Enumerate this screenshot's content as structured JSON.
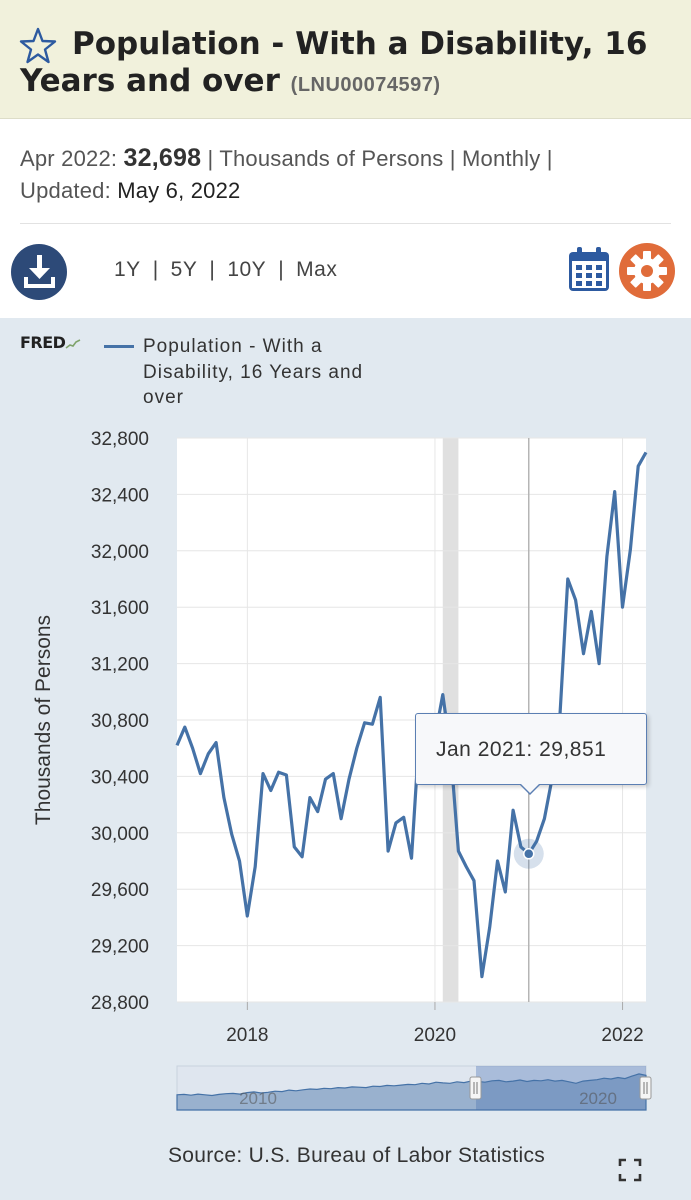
{
  "header": {
    "title": "Population - With a Disability, 16 Years and over",
    "series_id": "(LNU00074597)"
  },
  "meta": {
    "latest_date": "Apr 2022:",
    "latest_value": "32,698",
    "units": "Thousands of Persons",
    "frequency": "Monthly",
    "updated_label": "Updated:",
    "updated_date": "May 6, 2022"
  },
  "toolbar": {
    "ranges": [
      "1Y",
      "5Y",
      "10Y",
      "Max"
    ]
  },
  "branding": {
    "logo_text": "FRED"
  },
  "icons": {
    "favorite": "star-icon",
    "download": "download-icon",
    "calendar": "calendar-icon",
    "settings": "gear-icon",
    "fullscreen": "fullscreen-icon"
  },
  "colors": {
    "series": "#4572a7",
    "title_bg": "#f1f1dc",
    "panel_bg": "#e1e9f0",
    "download_btn": "#2d4a78",
    "settings_btn": "#e06c3a",
    "recession_band": "#e0e0e0"
  },
  "tooltip": {
    "label": "Jan 2021:",
    "value": "29,851"
  },
  "source": "Source: U.S. Bureau of Labor Statistics",
  "chart_data": {
    "type": "line",
    "title": "",
    "legend": [
      "Population - With a Disability, 16 Years and over"
    ],
    "legend_position": "top-left",
    "ylabel": "Thousands of Persons",
    "xlabel": "",
    "ylim": [
      28800,
      32800
    ],
    "y_ticks": [
      28800,
      29200,
      29600,
      30000,
      30400,
      30800,
      31200,
      31600,
      32000,
      32400,
      32800
    ],
    "y_tick_labels": [
      "28,800",
      "29,200",
      "29,600",
      "30,000",
      "30,400",
      "30,800",
      "31,200",
      "31,600",
      "32,000",
      "32,400",
      "32,800"
    ],
    "x_ticks": [
      "2018-01",
      "2020-01",
      "2022-01"
    ],
    "x_tick_labels": [
      "2018",
      "2020",
      "2022"
    ],
    "xlim": [
      "2017-04",
      "2022-04"
    ],
    "grid": true,
    "recession": {
      "start": "2020-02",
      "end": "2020-04"
    },
    "highlight": {
      "date": "2021-01",
      "value": 29851
    },
    "series": [
      {
        "name": "Population - With a Disability, 16 Years and over",
        "points": [
          [
            "2017-04",
            30620
          ],
          [
            "2017-05",
            30750
          ],
          [
            "2017-06",
            30600
          ],
          [
            "2017-07",
            30420
          ],
          [
            "2017-08",
            30560
          ],
          [
            "2017-09",
            30640
          ],
          [
            "2017-10",
            30250
          ],
          [
            "2017-11",
            29990
          ],
          [
            "2017-12",
            29800
          ],
          [
            "2018-01",
            29410
          ],
          [
            "2018-02",
            29760
          ],
          [
            "2018-03",
            30420
          ],
          [
            "2018-04",
            30300
          ],
          [
            "2018-05",
            30430
          ],
          [
            "2018-06",
            30410
          ],
          [
            "2018-07",
            29900
          ],
          [
            "2018-08",
            29830
          ],
          [
            "2018-09",
            30250
          ],
          [
            "2018-10",
            30150
          ],
          [
            "2018-11",
            30380
          ],
          [
            "2018-12",
            30420
          ],
          [
            "2019-01",
            30100
          ],
          [
            "2019-02",
            30380
          ],
          [
            "2019-03",
            30600
          ],
          [
            "2019-04",
            30780
          ],
          [
            "2019-05",
            30770
          ],
          [
            "2019-06",
            30960
          ],
          [
            "2019-07",
            29870
          ],
          [
            "2019-08",
            30070
          ],
          [
            "2019-09",
            30110
          ],
          [
            "2019-10",
            29820
          ],
          [
            "2019-11",
            30700
          ],
          [
            "2019-12",
            30730
          ],
          [
            "2020-01",
            30680
          ],
          [
            "2020-02",
            30980
          ],
          [
            "2020-03",
            30580
          ],
          [
            "2020-04",
            29870
          ],
          [
            "2020-05",
            29760
          ],
          [
            "2020-06",
            29660
          ],
          [
            "2020-07",
            28980
          ],
          [
            "2020-08",
            29330
          ],
          [
            "2020-09",
            29800
          ],
          [
            "2020-10",
            29580
          ],
          [
            "2020-11",
            30160
          ],
          [
            "2020-12",
            29900
          ],
          [
            "2021-01",
            29851
          ],
          [
            "2021-02",
            29940
          ],
          [
            "2021-03",
            30100
          ],
          [
            "2021-04",
            30390
          ],
          [
            "2021-05",
            30840
          ],
          [
            "2021-06",
            31800
          ],
          [
            "2021-07",
            31650
          ],
          [
            "2021-08",
            31270
          ],
          [
            "2021-09",
            31570
          ],
          [
            "2021-10",
            31200
          ],
          [
            "2021-11",
            31960
          ],
          [
            "2021-12",
            32420
          ],
          [
            "2022-01",
            31600
          ],
          [
            "2022-02",
            32010
          ],
          [
            "2022-03",
            32600
          ],
          [
            "2022-04",
            32698
          ]
        ]
      }
    ]
  },
  "navigator": {
    "tick_labels": [
      "2010",
      "2020"
    ],
    "series": [
      20,
      21,
      19,
      22,
      20,
      18,
      21,
      23,
      24,
      22,
      26,
      28,
      25,
      27,
      30,
      29,
      33,
      31,
      34,
      36,
      35,
      38,
      37,
      40,
      39,
      42,
      41,
      40,
      44,
      43,
      46,
      45,
      47,
      49,
      48,
      52,
      50,
      55,
      53,
      52,
      56,
      54,
      58,
      57,
      55,
      59,
      60,
      56,
      58,
      61,
      57,
      60,
      59,
      62,
      58,
      60,
      56,
      52,
      58,
      60,
      62,
      66,
      64,
      68,
      65,
      72,
      78,
      74
    ]
  }
}
